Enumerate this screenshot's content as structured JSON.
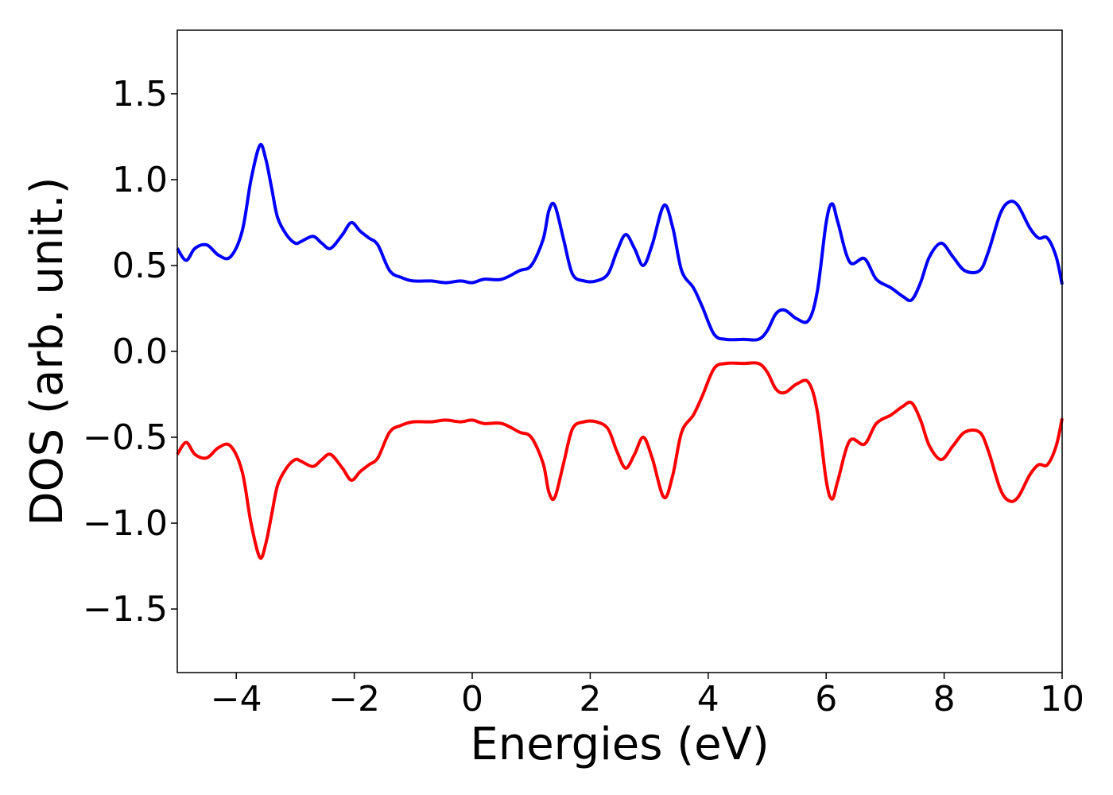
{
  "chart_data": {
    "type": "line",
    "title": "",
    "xlabel": "Energies (eV)",
    "ylabel": "DOS (arb. unit.)",
    "xlim": [
      -5,
      10
    ],
    "ylim": [
      -1.87,
      1.87
    ],
    "grid": false,
    "legend": "none",
    "x_ticks": [
      {
        "value": -4,
        "label": "−4"
      },
      {
        "value": -2,
        "label": "−2"
      },
      {
        "value": 0,
        "label": "0"
      },
      {
        "value": 2,
        "label": "2"
      },
      {
        "value": 4,
        "label": "4"
      },
      {
        "value": 6,
        "label": "6"
      },
      {
        "value": 8,
        "label": "8"
      },
      {
        "value": 10,
        "label": "10"
      }
    ],
    "y_ticks": [
      {
        "value": 1.5,
        "label": "1.5"
      },
      {
        "value": 1.0,
        "label": "1.0"
      },
      {
        "value": 0.5,
        "label": "0.5"
      },
      {
        "value": 0.0,
        "label": "0.0"
      },
      {
        "value": -0.5,
        "label": "−0.5"
      },
      {
        "value": -1.0,
        "label": "−1.0"
      },
      {
        "value": -1.5,
        "label": "−1.5"
      }
    ],
    "series": [
      {
        "color": "#0000ff",
        "x": [
          -5.0,
          -4.85,
          -4.7,
          -4.5,
          -4.3,
          -4.1,
          -3.9,
          -3.75,
          -3.6,
          -3.5,
          -3.4,
          -3.3,
          -3.15,
          -3.0,
          -2.9,
          -2.7,
          -2.55,
          -2.4,
          -2.2,
          -2.05,
          -1.9,
          -1.75,
          -1.6,
          -1.4,
          -1.2,
          -1.0,
          -0.7,
          -0.45,
          -0.2,
          0.0,
          0.2,
          0.5,
          0.8,
          1.0,
          1.2,
          1.3,
          1.4,
          1.55,
          1.7,
          1.9,
          2.1,
          2.3,
          2.45,
          2.6,
          2.75,
          2.9,
          3.05,
          3.25,
          3.4,
          3.55,
          3.75,
          3.9,
          4.1,
          4.3,
          4.6,
          4.85,
          5.0,
          5.15,
          5.3,
          5.5,
          5.7,
          5.85,
          6.0,
          6.1,
          6.2,
          6.4,
          6.65,
          6.85,
          7.1,
          7.3,
          7.45,
          7.6,
          7.75,
          7.95,
          8.15,
          8.35,
          8.6,
          8.75,
          8.95,
          9.1,
          9.25,
          9.45,
          9.6,
          9.75,
          9.9,
          10.0
        ],
        "y": [
          0.6,
          0.53,
          0.6,
          0.62,
          0.56,
          0.55,
          0.7,
          1.0,
          1.2,
          1.12,
          0.95,
          0.78,
          0.68,
          0.63,
          0.64,
          0.67,
          0.63,
          0.6,
          0.68,
          0.75,
          0.7,
          0.66,
          0.62,
          0.47,
          0.43,
          0.41,
          0.41,
          0.4,
          0.41,
          0.4,
          0.42,
          0.42,
          0.47,
          0.5,
          0.65,
          0.82,
          0.85,
          0.65,
          0.45,
          0.41,
          0.41,
          0.45,
          0.58,
          0.68,
          0.6,
          0.5,
          0.62,
          0.85,
          0.72,
          0.47,
          0.37,
          0.26,
          0.1,
          0.07,
          0.07,
          0.07,
          0.12,
          0.22,
          0.24,
          0.19,
          0.18,
          0.35,
          0.75,
          0.86,
          0.75,
          0.52,
          0.54,
          0.42,
          0.37,
          0.32,
          0.3,
          0.4,
          0.55,
          0.63,
          0.55,
          0.47,
          0.47,
          0.58,
          0.8,
          0.87,
          0.85,
          0.72,
          0.66,
          0.66,
          0.55,
          0.39
        ]
      },
      {
        "color": "#ff0000",
        "x": [
          -5.0,
          -4.85,
          -4.7,
          -4.5,
          -4.3,
          -4.1,
          -3.9,
          -3.75,
          -3.6,
          -3.5,
          -3.4,
          -3.3,
          -3.15,
          -3.0,
          -2.9,
          -2.7,
          -2.55,
          -2.4,
          -2.2,
          -2.05,
          -1.9,
          -1.75,
          -1.6,
          -1.4,
          -1.2,
          -1.0,
          -0.7,
          -0.45,
          -0.2,
          0.0,
          0.2,
          0.5,
          0.8,
          1.0,
          1.2,
          1.3,
          1.4,
          1.55,
          1.7,
          1.9,
          2.1,
          2.3,
          2.45,
          2.6,
          2.75,
          2.9,
          3.05,
          3.25,
          3.4,
          3.55,
          3.75,
          3.9,
          4.1,
          4.3,
          4.6,
          4.85,
          5.0,
          5.15,
          5.3,
          5.5,
          5.7,
          5.85,
          6.0,
          6.1,
          6.2,
          6.4,
          6.65,
          6.85,
          7.1,
          7.3,
          7.45,
          7.6,
          7.75,
          7.95,
          8.15,
          8.35,
          8.6,
          8.75,
          8.95,
          9.1,
          9.25,
          9.45,
          9.6,
          9.75,
          9.9,
          10.0
        ],
        "y": [
          -0.6,
          -0.53,
          -0.6,
          -0.62,
          -0.56,
          -0.55,
          -0.7,
          -1.0,
          -1.2,
          -1.12,
          -0.95,
          -0.78,
          -0.68,
          -0.63,
          -0.64,
          -0.67,
          -0.63,
          -0.6,
          -0.68,
          -0.75,
          -0.7,
          -0.66,
          -0.62,
          -0.47,
          -0.43,
          -0.41,
          -0.41,
          -0.4,
          -0.41,
          -0.4,
          -0.42,
          -0.42,
          -0.47,
          -0.5,
          -0.65,
          -0.82,
          -0.85,
          -0.65,
          -0.45,
          -0.41,
          -0.41,
          -0.45,
          -0.58,
          -0.68,
          -0.6,
          -0.5,
          -0.62,
          -0.85,
          -0.72,
          -0.47,
          -0.37,
          -0.26,
          -0.1,
          -0.07,
          -0.07,
          -0.07,
          -0.12,
          -0.22,
          -0.24,
          -0.19,
          -0.18,
          -0.35,
          -0.75,
          -0.86,
          -0.75,
          -0.52,
          -0.54,
          -0.42,
          -0.37,
          -0.32,
          -0.3,
          -0.4,
          -0.55,
          -0.63,
          -0.55,
          -0.47,
          -0.47,
          -0.58,
          -0.8,
          -0.87,
          -0.85,
          -0.72,
          -0.66,
          -0.66,
          -0.55,
          -0.39
        ]
      }
    ]
  }
}
